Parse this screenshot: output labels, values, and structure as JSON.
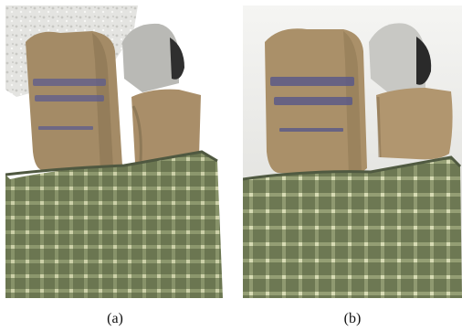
{
  "figure": {
    "panels": [
      {
        "caption": "(a)"
      },
      {
        "caption": "(b)"
      }
    ],
    "colors": {
      "tablecloth": "#6f7a55",
      "bag": "#a78f6a",
      "bag_print": "#5a5a8a",
      "background_b": "#f2f2f0",
      "noise_a": "#d9d9d6"
    }
  }
}
